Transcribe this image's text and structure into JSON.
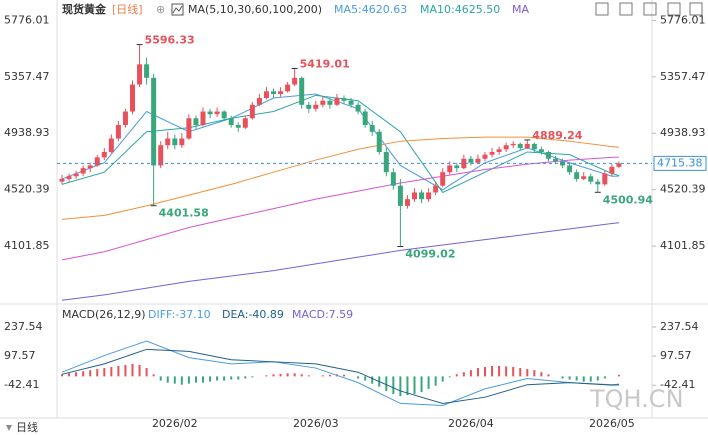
{
  "header": {
    "title": "现货黄金",
    "period": "[日线]",
    "ma_label": "MA(5,10,30,60,100,200)",
    "ma_legend": [
      "MA5:4620.63",
      "MA10:4625.50",
      "MA"
    ]
  },
  "chart_data": [
    {
      "type": "candlestick",
      "categories": [
        null,
        null,
        null,
        null,
        null,
        null,
        null,
        null,
        null,
        null,
        null,
        null,
        null,
        null,
        null,
        null,
        "2026/02",
        null,
        null,
        null,
        null,
        null,
        null,
        null,
        null,
        null,
        null,
        null,
        null,
        null,
        null,
        null,
        null,
        null,
        null,
        null,
        "2026/03",
        null,
        null,
        null,
        null,
        null,
        null,
        null,
        null,
        null,
        null,
        null,
        null,
        null,
        null,
        null,
        null,
        null,
        null,
        null,
        null,
        null,
        "2026/04",
        null,
        null,
        null,
        null,
        null,
        null,
        null,
        null,
        null,
        null,
        null,
        null,
        null,
        null,
        null,
        null,
        null,
        null,
        null,
        "2026/05",
        null
      ],
      "candles": [
        [
          4580,
          4630,
          4560,
          4600
        ],
        [
          4600,
          4640,
          4580,
          4620
        ],
        [
          4620,
          4660,
          4600,
          4640
        ],
        [
          4640,
          4700,
          4620,
          4680
        ],
        [
          4680,
          4720,
          4650,
          4700
        ],
        [
          4700,
          4780,
          4690,
          4760
        ],
        [
          4760,
          4830,
          4740,
          4800
        ],
        [
          4800,
          4930,
          4790,
          4900
        ],
        [
          4900,
          5030,
          4880,
          5000
        ],
        [
          5000,
          5120,
          4980,
          5100
        ],
        [
          5100,
          5330,
          5080,
          5300
        ],
        [
          5300,
          5596.33,
          5280,
          5450
        ],
        [
          5450,
          5500,
          5300,
          5350
        ],
        [
          5350,
          5380,
          4401.58,
          4700
        ],
        [
          4700,
          4880,
          4680,
          4850
        ],
        [
          4850,
          4950,
          4820,
          4900
        ],
        [
          4900,
          4930,
          4820,
          4850
        ],
        [
          4850,
          4940,
          4830,
          4900
        ],
        [
          4900,
          5080,
          4890,
          5050
        ],
        [
          5050,
          5070,
          4970,
          5000
        ],
        [
          5000,
          5130,
          4990,
          5100
        ],
        [
          5100,
          5120,
          5050,
          5080
        ],
        [
          5080,
          5130,
          5060,
          5100
        ],
        [
          5100,
          5110,
          5030,
          5050
        ],
        [
          5050,
          5070,
          4980,
          5000
        ],
        [
          5000,
          5020,
          4950,
          4980
        ],
        [
          4980,
          5070,
          4970,
          5050
        ],
        [
          5050,
          5170,
          5040,
          5150
        ],
        [
          5150,
          5230,
          5140,
          5200
        ],
        [
          5200,
          5280,
          5190,
          5250
        ],
        [
          5250,
          5270,
          5200,
          5230
        ],
        [
          5230,
          5280,
          5210,
          5250
        ],
        [
          5250,
          5320,
          5240,
          5300
        ],
        [
          5300,
          5419.01,
          5290,
          5350
        ],
        [
          5350,
          5360,
          5120,
          5150
        ],
        [
          5150,
          5170,
          5090,
          5120
        ],
        [
          5120,
          5180,
          5100,
          5150
        ],
        [
          5150,
          5210,
          5130,
          5180
        ],
        [
          5180,
          5200,
          5120,
          5150
        ],
        [
          5150,
          5230,
          5140,
          5200
        ],
        [
          5200,
          5220,
          5160,
          5180
        ],
        [
          5180,
          5200,
          5130,
          5150
        ],
        [
          5150,
          5170,
          5080,
          5100
        ],
        [
          5100,
          5120,
          4980,
          5000
        ],
        [
          5000,
          5030,
          4920,
          4950
        ],
        [
          4950,
          4970,
          4780,
          4800
        ],
        [
          4800,
          4830,
          4620,
          4650
        ],
        [
          4650,
          4680,
          4520,
          4550
        ],
        [
          4550,
          4600,
          4099.02,
          4400
        ],
        [
          4400,
          4480,
          4380,
          4450
        ],
        [
          4450,
          4530,
          4430,
          4500
        ],
        [
          4500,
          4520,
          4420,
          4450
        ],
        [
          4450,
          4530,
          4430,
          4500
        ],
        [
          4500,
          4580,
          4480,
          4550
        ],
        [
          4550,
          4680,
          4540,
          4650
        ],
        [
          4650,
          4730,
          4630,
          4700
        ],
        [
          4700,
          4720,
          4650,
          4680
        ],
        [
          4680,
          4780,
          4670,
          4750
        ],
        [
          4750,
          4770,
          4700,
          4720
        ],
        [
          4720,
          4780,
          4710,
          4750
        ],
        [
          4750,
          4800,
          4730,
          4780
        ],
        [
          4780,
          4830,
          4760,
          4800
        ],
        [
          4800,
          4840,
          4780,
          4820
        ],
        [
          4820,
          4870,
          4800,
          4850
        ],
        [
          4850,
          4880,
          4830,
          4860
        ],
        [
          4860,
          4870,
          4810,
          4830
        ],
        [
          4830,
          4889.24,
          4820,
          4860
        ],
        [
          4860,
          4870,
          4800,
          4820
        ],
        [
          4820,
          4840,
          4780,
          4800
        ],
        [
          4800,
          4810,
          4730,
          4750
        ],
        [
          4750,
          4770,
          4710,
          4730
        ],
        [
          4730,
          4750,
          4680,
          4700
        ],
        [
          4700,
          4720,
          4630,
          4650
        ],
        [
          4650,
          4670,
          4580,
          4600
        ],
        [
          4600,
          4650,
          4590,
          4620
        ],
        [
          4620,
          4640,
          4560,
          4580
        ],
        [
          4580,
          4600,
          4500.94,
          4560
        ],
        [
          4560,
          4660,
          4550,
          4640
        ],
        [
          4640,
          4710,
          4620,
          4690
        ],
        [
          4690,
          4730,
          4680,
          4715.38
        ]
      ],
      "up_color": "#e8505b",
      "down_color": "#3aa67c",
      "last_color": "#3a8fd8",
      "ylim": [
        3680,
        5890
      ],
      "yticks": [
        5776.01,
        5357.47,
        4938.93,
        4520.39,
        4101.85
      ],
      "x": [
        0,
        6,
        12,
        18,
        24,
        30,
        36,
        42,
        48,
        54,
        60,
        66,
        72,
        78,
        79
      ],
      "series": [
        {
          "color": "#4b9be0",
          "values": [
            4600,
            4720,
            5100,
            4950,
            5050,
            5200,
            5230,
            5120,
            4700,
            4520,
            4720,
            4830,
            4720,
            4620,
            4620.63
          ]
        },
        {
          "color": "#2aa7a0",
          "values": [
            4560,
            4650,
            4950,
            4980,
            5050,
            5100,
            5220,
            5180,
            4950,
            4500,
            4650,
            4800,
            4780,
            4640,
            4625.5
          ]
        },
        {
          "color": "#f0913a",
          "values": [
            4300,
            4330,
            4400,
            4480,
            4560,
            4650,
            4740,
            4820,
            4880,
            4900,
            4910,
            4910,
            4880,
            4840,
            4835
          ]
        },
        {
          "color": "#d455d4",
          "values": [
            4000,
            4060,
            4150,
            4240,
            4310,
            4380,
            4450,
            4510,
            4570,
            4620,
            4670,
            4710,
            4740,
            4760,
            4762
          ]
        },
        {
          "color": "#7b5ed6",
          "values": [
            3700,
            3740,
            3790,
            3840,
            3880,
            3920,
            3970,
            4020,
            4070,
            4110,
            4150,
            4190,
            4230,
            4270,
            4275
          ]
        }
      ]
    },
    {
      "type": "macd",
      "title": "MACD(26,12,9)",
      "legend": [
        "DIFF:-37.10",
        "DEA:-40.89",
        "MACD:7.59"
      ],
      "ylim": [
        -200,
        343
      ],
      "yticks": [
        237.54,
        97.57,
        -42.41
      ],
      "macd": [
        10,
        15,
        20,
        25,
        30,
        35,
        40,
        45,
        50,
        55,
        60,
        55,
        40,
        10,
        -20,
        -30,
        -35,
        -40,
        -35,
        -30,
        -30,
        -25,
        -20,
        -20,
        -15,
        -15,
        -10,
        -5,
        0,
        5,
        10,
        12,
        15,
        15,
        10,
        5,
        0,
        5,
        8,
        10,
        8,
        0,
        -10,
        -20,
        -35,
        -50,
        -70,
        -85,
        -95,
        -90,
        -85,
        -75,
        -60,
        -45,
        -25,
        -5,
        10,
        20,
        30,
        40,
        45,
        50,
        50,
        48,
        45,
        40,
        35,
        30,
        20,
        10,
        0,
        -10,
        -15,
        -20,
        -25,
        -25,
        -20,
        -10,
        0,
        7.59
      ],
      "up_color": "#e8505b",
      "down_color": "#3aa67c",
      "x": [
        0,
        6,
        12,
        18,
        24,
        30,
        36,
        42,
        48,
        54,
        60,
        66,
        72,
        78,
        79
      ],
      "series": [
        {
          "color": "#4b9be0",
          "values": [
            20,
            100,
            170,
            90,
            60,
            70,
            40,
            -30,
            -130,
            -140,
            -60,
            -10,
            -30,
            -40,
            -37.1
          ]
        },
        {
          "color": "#1f5f8b",
          "values": [
            10,
            60,
            130,
            120,
            80,
            70,
            60,
            20,
            -70,
            -130,
            -100,
            -40,
            -30,
            -42,
            -40.89
          ]
        }
      ]
    }
  ],
  "footer": {
    "period": "日线",
    "watermark": "TQH.CN"
  }
}
